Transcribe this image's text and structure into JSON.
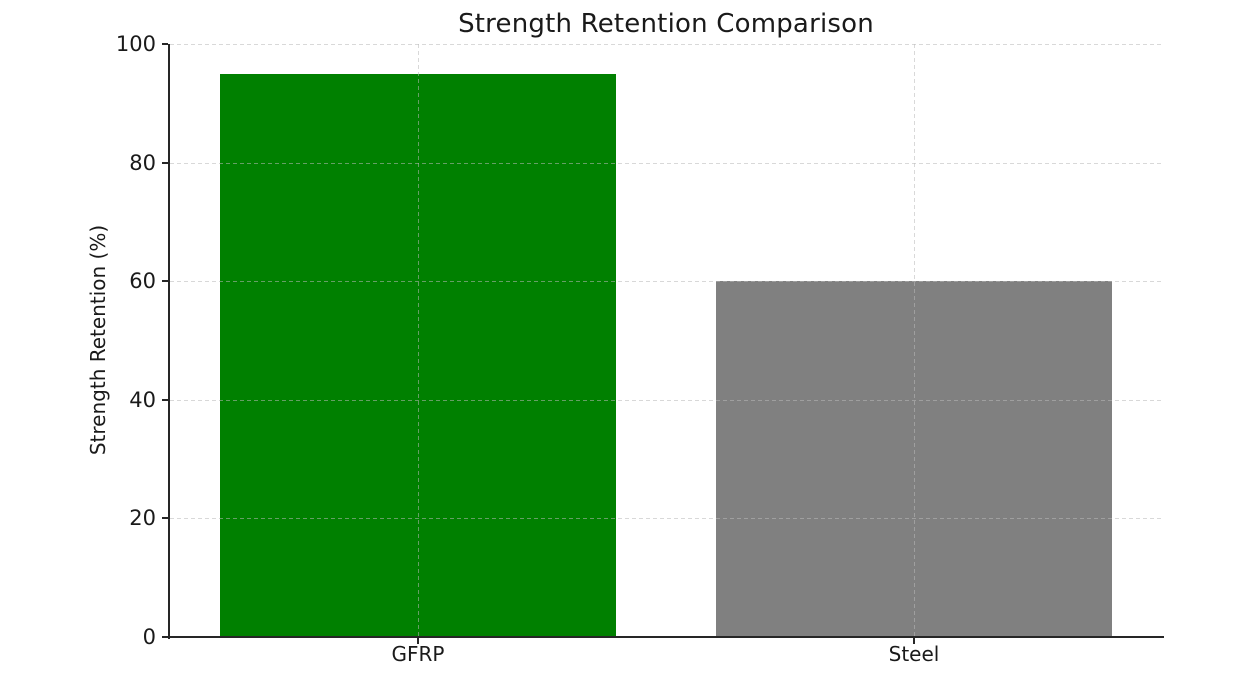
{
  "chart_data": {
    "type": "bar",
    "title": "Strength Retention Comparison",
    "categories": [
      "GFRP",
      "Steel"
    ],
    "values": [
      95,
      60
    ],
    "bar_colors": [
      "#008000",
      "#808080"
    ],
    "xlabel": "",
    "ylabel": "Strength Retention (%)",
    "ylim": [
      0,
      100
    ],
    "yticks": [
      0,
      20,
      40,
      60,
      80,
      100
    ],
    "bar_width_fraction": 0.8,
    "grid": "dashed light-gray gridlines on both axes, drawn over bars",
    "legend_position": "none"
  },
  "colors": {
    "accent_bar_gfrp": "#008000",
    "accent_bar_steel": "#808080",
    "spine": "#262626",
    "text": "#1a1a1a",
    "grid": "#b9b9b9",
    "background": "#ffffff"
  }
}
